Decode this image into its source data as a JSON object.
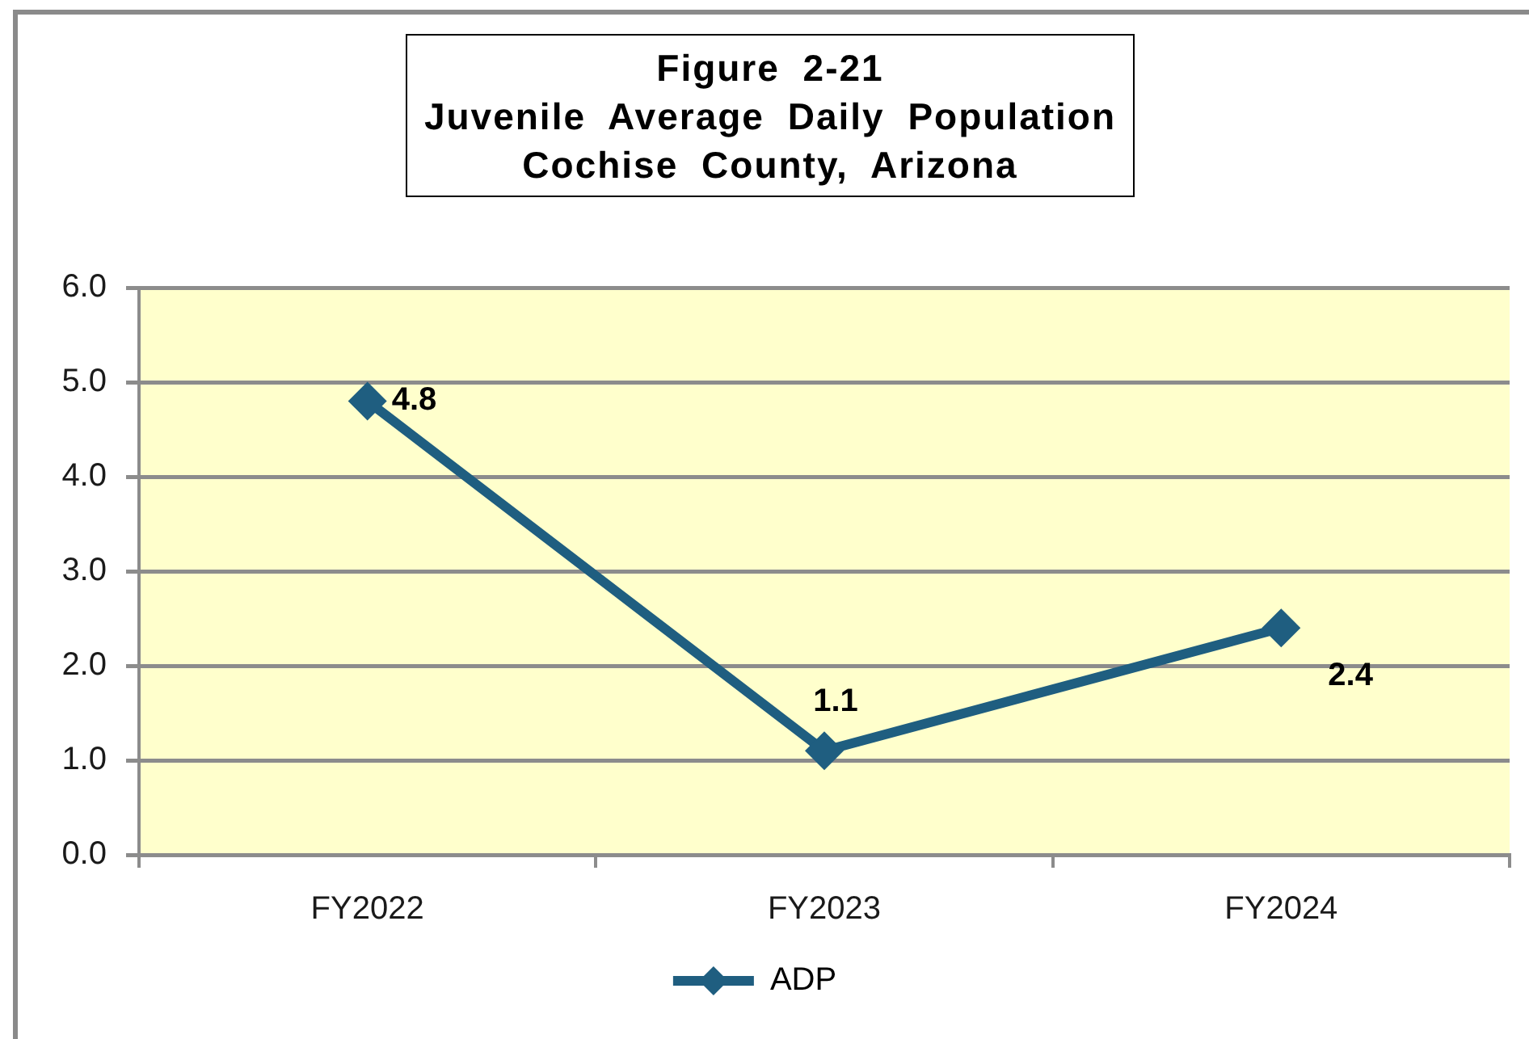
{
  "chart_data": {
    "type": "line",
    "title": "Figure 2-21\nJuvenile Average Daily Population\nCochise County, Arizona",
    "categories": [
      "FY2022",
      "FY2023",
      "FY2024"
    ],
    "series": [
      {
        "name": "ADP",
        "color": "#1f5e80",
        "values": [
          4.8,
          1.1,
          2.4
        ]
      }
    ],
    "ylim": [
      0,
      6
    ],
    "yticks": [
      {
        "value": 0,
        "label": "0.0"
      },
      {
        "value": 1,
        "label": "1.0"
      },
      {
        "value": 2,
        "label": "2.0"
      },
      {
        "value": 3,
        "label": "3.0"
      },
      {
        "value": 4,
        "label": "4.0"
      },
      {
        "value": 5,
        "label": "5.0"
      },
      {
        "value": 6,
        "label": "6.0"
      }
    ],
    "grid": "y",
    "legend": "bottom",
    "marker": "diamond",
    "line_style": "solid",
    "data_labels": true
  }
}
